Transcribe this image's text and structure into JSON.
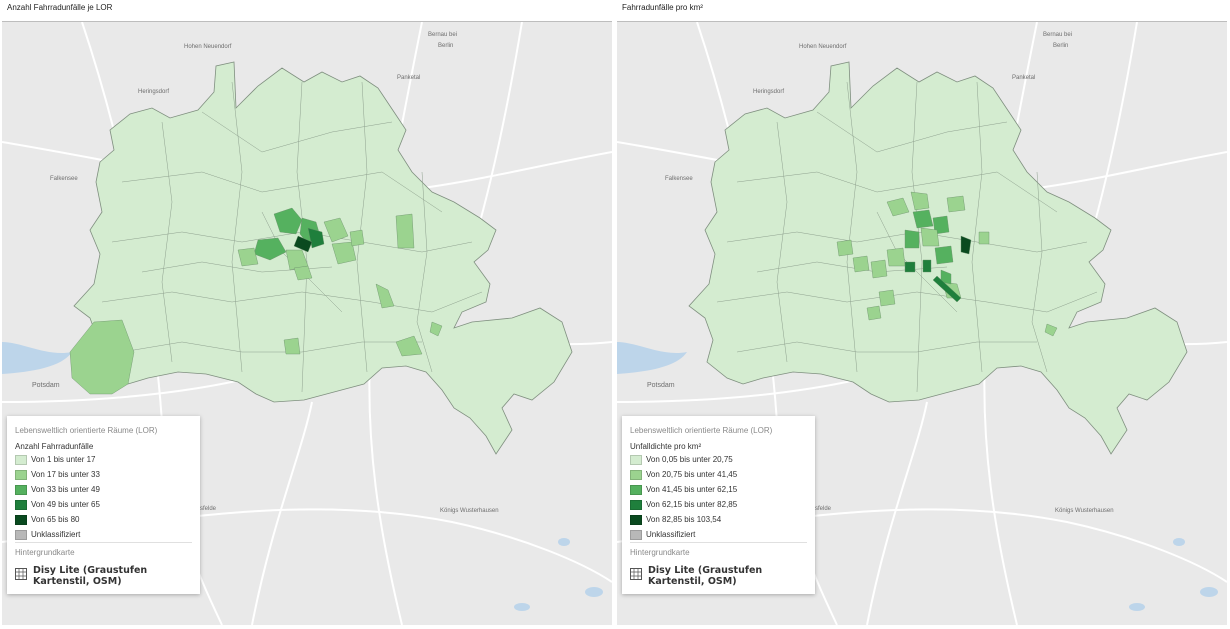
{
  "panels": [
    {
      "title": "Anzahl Fahrradunfälle je LOR",
      "legend": {
        "group": "Lebensweltlich orientierte Räume (LOR)",
        "title": "Anzahl Fahrradunfälle",
        "items": [
          {
            "label": "Von 1 bis unter 17",
            "color": "#d4ecd0"
          },
          {
            "label": "Von 17 bis unter 33",
            "color": "#9bd38f"
          },
          {
            "label": "Von 33 bis unter 49",
            "color": "#55b15f"
          },
          {
            "label": "Von 49 bis unter 65",
            "color": "#1f7f3c"
          },
          {
            "label": "Von 65 bis 80",
            "color": "#0a4a1f"
          },
          {
            "label": "Unklassifiziert",
            "color": "#b8b8b8"
          }
        ],
        "base_title": "Hintergrundkarte",
        "base_line1": "Disy Lite (Graustufen",
        "base_line2": "Kartenstil, OSM)"
      },
      "places": {
        "hohen_neuendorf": "Hohen Neuendorf",
        "bernau_1": "Bernau bei",
        "bernau_2": "Berlin",
        "panketal": "Panketal",
        "heringsdorf": "Heringsdorf",
        "falkensee": "Falkensee",
        "potsdam": "Potsdam",
        "koenigs": "Königs Wusterhausen",
        "felde": "sfelde"
      }
    },
    {
      "title": "Fahrradunfälle pro km²",
      "legend": {
        "group": "Lebensweltlich orientierte Räume (LOR)",
        "title": "Unfalldichte pro km²",
        "items": [
          {
            "label": "Von 0,05 bis unter 20,75",
            "color": "#d4ecd0"
          },
          {
            "label": "Von 20,75 bis unter 41,45",
            "color": "#9bd38f"
          },
          {
            "label": "Von 41,45 bis unter 62,15",
            "color": "#55b15f"
          },
          {
            "label": "Von 62,15 bis unter 82,85",
            "color": "#1f7f3c"
          },
          {
            "label": "Von 82,85 bis 103,54",
            "color": "#0a4a1f"
          },
          {
            "label": "Unklassifiziert",
            "color": "#b8b8b8"
          }
        ],
        "base_title": "Hintergrundkarte",
        "base_line1": "Disy Lite (Graustufen",
        "base_line2": "Kartenstil, OSM)"
      },
      "places": {
        "hohen_neuendorf": "Hohen Neuendorf",
        "bernau_1": "Bernau bei",
        "bernau_2": "Berlin",
        "panketal": "Panketal",
        "heringsdorf": "Heringsdorf",
        "falkensee": "Falkensee",
        "potsdam": "Potsdam",
        "koenigs": "Königs Wusterhausen",
        "felde": "sfelde"
      }
    }
  ]
}
